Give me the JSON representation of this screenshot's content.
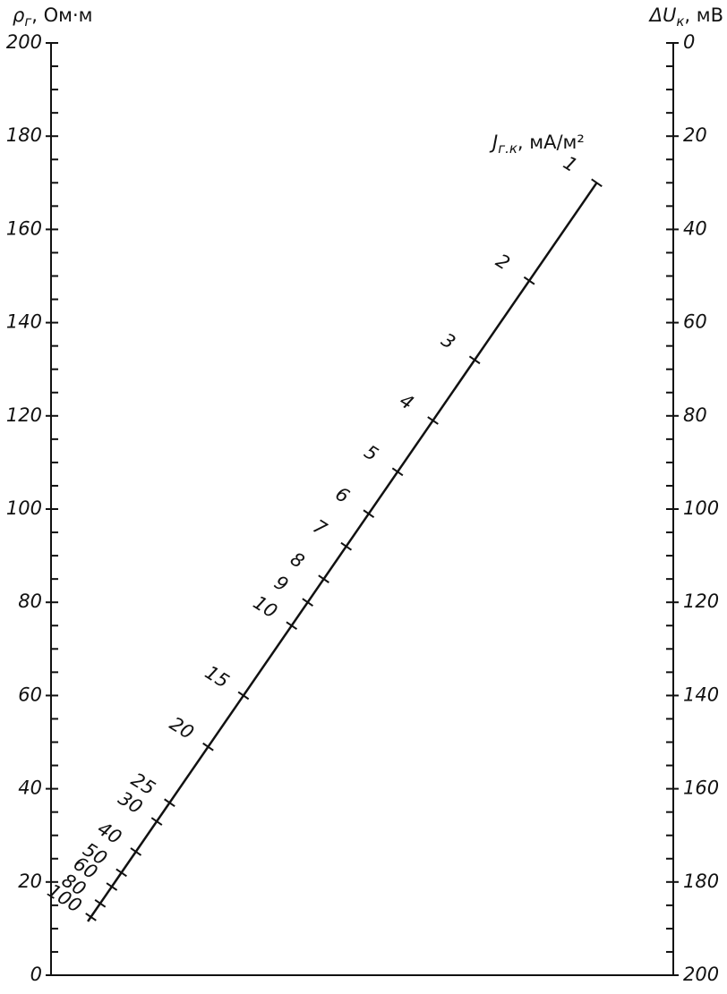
{
  "chart_data": {
    "type": "nomogram",
    "left_axis": {
      "symbol": "ρ",
      "subscript": "г",
      "unit": ", Ом·м",
      "lim": [
        0,
        200
      ],
      "ticks": [
        0,
        20,
        40,
        60,
        80,
        100,
        120,
        140,
        160,
        180,
        200
      ],
      "minor_ticks": [
        5,
        10,
        15,
        25,
        30,
        35,
        45,
        50,
        55,
        65,
        70,
        75,
        85,
        90,
        95,
        105,
        110,
        115,
        125,
        130,
        135,
        145,
        150,
        155,
        165,
        170,
        175,
        185,
        190,
        195
      ]
    },
    "right_axis": {
      "symbol": "ΔU",
      "subscript": "к",
      "unit": ", мВ",
      "lim": [
        0,
        200
      ],
      "ticks": [
        0,
        20,
        40,
        60,
        80,
        100,
        120,
        140,
        160,
        180,
        200
      ],
      "minor_ticks": [
        5,
        10,
        15,
        25,
        30,
        35,
        45,
        50,
        55,
        65,
        70,
        75,
        85,
        90,
        95,
        105,
        110,
        115,
        125,
        130,
        135,
        145,
        150,
        155,
        165,
        170,
        175,
        185,
        190,
        195
      ]
    },
    "j_scale": {
      "symbol": "J",
      "subscript": "г.к",
      "unit": ", мА/м²",
      "marks": [
        {
          "value": 1,
          "rho": 170
        },
        {
          "value": 2,
          "rho": 149
        },
        {
          "value": 3,
          "rho": 132
        },
        {
          "value": 4,
          "rho": 119
        },
        {
          "value": 5,
          "rho": 108
        },
        {
          "value": 6,
          "rho": 99
        },
        {
          "value": 7,
          "rho": 92
        },
        {
          "value": 8,
          "rho": 85
        },
        {
          "value": 9,
          "rho": 80
        },
        {
          "value": 10,
          "rho": 75
        },
        {
          "value": 15,
          "rho": 60
        },
        {
          "value": 20,
          "rho": 49
        },
        {
          "value": 25,
          "rho": 37
        },
        {
          "value": 30,
          "rho": 33
        },
        {
          "value": 40,
          "rho": 26.5
        },
        {
          "value": 50,
          "rho": 22
        },
        {
          "value": 60,
          "rho": 19
        },
        {
          "value": 80,
          "rho": 15.4
        },
        {
          "value": 100,
          "rho": 12.5
        }
      ]
    }
  }
}
